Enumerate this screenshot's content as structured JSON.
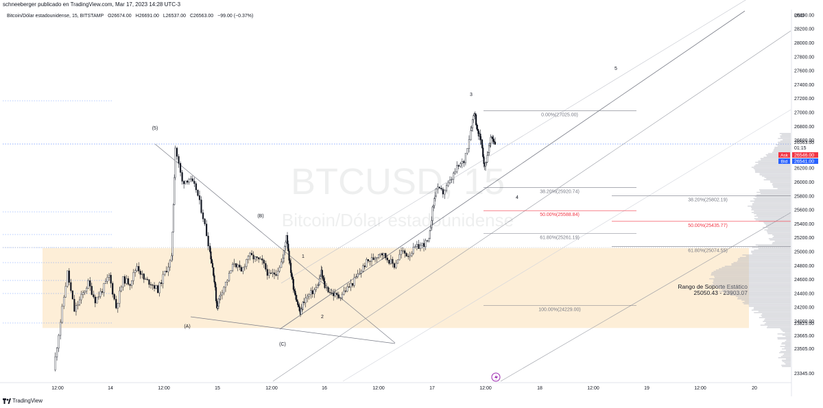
{
  "header": {
    "published_by": "schneeberger publicado en TradingView.com, Mar 17, 2023 14:28 UTC-3"
  },
  "legend": {
    "symbol": "Bitcoin/Dólar estadounidense, 15, BITSTAMP",
    "open": "O26674.00",
    "high": "H26691.00",
    "low": "L26537.00",
    "close": "C26563.00",
    "change": "−99.00 (−0.37%)"
  },
  "watermark": {
    "symbol": "BTCUSD, 15",
    "name": "Bitcoin/Dólar estadounidense"
  },
  "footer": {
    "brand": "TradingView"
  },
  "colors": {
    "up": "#131722",
    "support_zone": "#fdebd0",
    "fib_red": "#f23645",
    "ask": "#f23645",
    "bid": "#2962ff",
    "volume_profile": "#b2b5be"
  },
  "chart_data": {
    "type": "candlestick",
    "price_axis": {
      "currency": "USD",
      "ticks": [
        28400,
        28200,
        28000,
        27800,
        27600,
        27400,
        27200,
        27000,
        26800,
        26600,
        26200,
        26000,
        25800,
        25600,
        25400,
        25200,
        25000,
        24800,
        24600,
        24400,
        24200,
        24000,
        23825,
        23665,
        23505,
        23345
      ],
      "current_price": "26563.00",
      "countdown": "01:15",
      "ask": {
        "label": "Ask",
        "value": "26546.00"
      },
      "bid": {
        "label": "Bid",
        "value": "26541.00"
      },
      "range": [
        23300,
        28500
      ]
    },
    "time_axis": [
      "12:00",
      "14",
      "12:00",
      "15",
      "12:00",
      "16",
      "12:00",
      "17",
      "12:00",
      "18",
      "12:00",
      "19",
      "12:00",
      "20"
    ],
    "price_path": [
      [
        0,
        23300
      ],
      [
        2,
        24000
      ],
      [
        4,
        24700
      ],
      [
        6,
        24150
      ],
      [
        8,
        24350
      ],
      [
        10,
        24550
      ],
      [
        12,
        24300
      ],
      [
        14,
        24450
      ],
      [
        16,
        24650
      ],
      [
        18,
        24200
      ],
      [
        20,
        24600
      ],
      [
        22,
        24550
      ],
      [
        24,
        24800
      ],
      [
        26,
        24600
      ],
      [
        28,
        24550
      ],
      [
        30,
        24450
      ],
      [
        32,
        24700
      ],
      [
        34,
        24900
      ],
      [
        35,
        26500
      ],
      [
        37,
        26000
      ],
      [
        39,
        26050
      ],
      [
        41,
        25900
      ],
      [
        43,
        25500
      ],
      [
        45,
        25000
      ],
      [
        46,
        24700
      ],
      [
        47,
        24200
      ],
      [
        48,
        24400
      ],
      [
        50,
        24600
      ],
      [
        52,
        24850
      ],
      [
        54,
        24700
      ],
      [
        56,
        24950
      ],
      [
        58,
        24900
      ],
      [
        60,
        24850
      ],
      [
        62,
        24650
      ],
      [
        64,
        24700
      ],
      [
        66,
        24900
      ],
      [
        67,
        25250
      ],
      [
        68,
        24800
      ],
      [
        69,
        24500
      ],
      [
        70,
        24300
      ],
      [
        71,
        24100
      ],
      [
        72,
        24300
      ],
      [
        74,
        24400
      ],
      [
        76,
        24500
      ],
      [
        77,
        24700
      ],
      [
        78,
        24500
      ],
      [
        80,
        24400
      ],
      [
        82,
        24350
      ],
      [
        84,
        24450
      ],
      [
        86,
        24550
      ],
      [
        88,
        24700
      ],
      [
        90,
        24850
      ],
      [
        92,
        24900
      ],
      [
        94,
        25000
      ],
      [
        96,
        24900
      ],
      [
        98,
        24800
      ],
      [
        100,
        25000
      ],
      [
        102,
        24950
      ],
      [
        104,
        25050
      ],
      [
        106,
        25100
      ],
      [
        108,
        25150
      ],
      [
        109,
        25600
      ],
      [
        110,
        25900
      ],
      [
        112,
        25850
      ],
      [
        114,
        26000
      ],
      [
        116,
        26200
      ],
      [
        118,
        26300
      ],
      [
        120,
        26750
      ],
      [
        121,
        27025
      ],
      [
        122,
        26700
      ],
      [
        123,
        26600
      ],
      [
        124,
        26200
      ],
      [
        125,
        26450
      ],
      [
        126,
        26650
      ],
      [
        127,
        26563
      ]
    ],
    "wave_labels": [
      "(5)",
      "(B)",
      "(A)",
      "(C)",
      "1",
      "2",
      "3",
      "4",
      "5"
    ],
    "fib_set_1": [
      {
        "label": "0.00%(27025.00)",
        "price": 27025.0,
        "color": "#787b86"
      },
      {
        "label": "38.20%(25920.74)",
        "price": 25920.74,
        "color": "#787b86"
      },
      {
        "label": "50.00%(25588.84)",
        "price": 25588.84,
        "color": "#f23645"
      },
      {
        "label": "61.80%(25261.19)",
        "price": 25261.19,
        "color": "#787b86"
      },
      {
        "label": "100.00%(24229.00)",
        "price": 24229.0,
        "color": "#787b86"
      }
    ],
    "fib_set_2": [
      {
        "label": "38.20%(25802.19)",
        "price": 25802.19,
        "color": "#787b86"
      },
      {
        "label": "50.00%(25435.77)",
        "price": 25435.77,
        "color": "#f23645"
      },
      {
        "label": "61.80%(25074.55)",
        "price": 25074.55,
        "color": "#787b86"
      }
    ],
    "support_zone": {
      "label": "Rango de Soporte Estático",
      "range_label": "25050.43 - 23903.07",
      "top": 25050.43,
      "bottom": 23903.07
    }
  }
}
